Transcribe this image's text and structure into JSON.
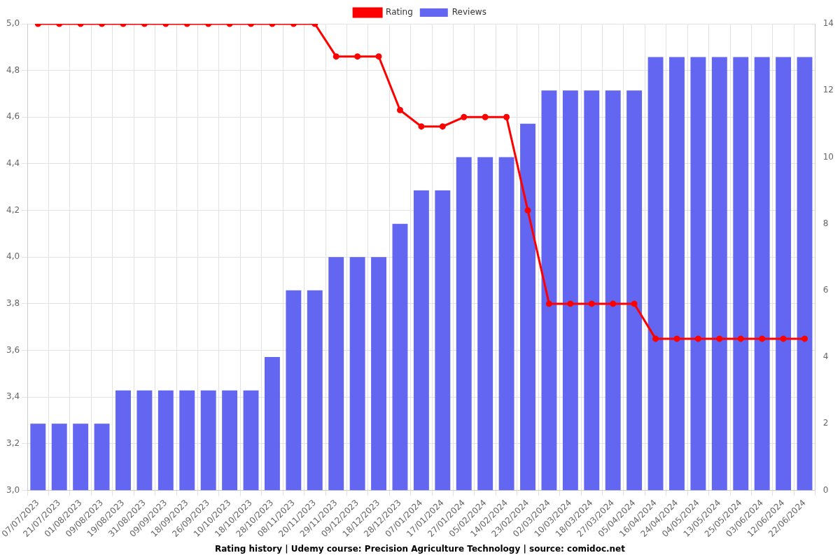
{
  "chart_data": {
    "type": "bar",
    "title": "Rating history | Udemy course: Precision Agriculture Technology | source: comidoc.net",
    "categories": [
      "07/07/2023",
      "21/07/2023",
      "01/08/2023",
      "09/08/2023",
      "19/08/2023",
      "31/08/2023",
      "09/09/2023",
      "18/09/2023",
      "26/09/2023",
      "10/10/2023",
      "18/10/2023",
      "28/10/2023",
      "08/11/2023",
      "20/11/2023",
      "29/11/2023",
      "09/12/2023",
      "18/12/2023",
      "28/12/2023",
      "07/01/2024",
      "17/01/2024",
      "27/01/2024",
      "05/02/2024",
      "14/02/2024",
      "23/02/2024",
      "02/03/2024",
      "10/03/2024",
      "18/03/2024",
      "27/03/2024",
      "05/04/2024",
      "16/04/2024",
      "24/04/2024",
      "04/05/2024",
      "13/05/2024",
      "25/05/2024",
      "03/06/2024",
      "12/06/2024",
      "22/06/2024"
    ],
    "series": [
      {
        "name": "Rating",
        "type": "line",
        "color": "#ff0000",
        "marker": "circle",
        "values": [
          5.0,
          5.0,
          5.0,
          5.0,
          5.0,
          5.0,
          5.0,
          5.0,
          5.0,
          5.0,
          5.0,
          5.0,
          5.0,
          5.0,
          4.86,
          4.86,
          4.86,
          4.63,
          4.56,
          4.56,
          4.6,
          4.6,
          4.6,
          4.2,
          3.8,
          3.8,
          3.8,
          3.8,
          3.8,
          3.65,
          3.65,
          3.65,
          3.65,
          3.65,
          3.65,
          3.65,
          3.65
        ]
      },
      {
        "name": "Reviews",
        "type": "bar",
        "color": "#6366f1",
        "axis": "y2",
        "values": [
          2,
          2,
          2,
          2,
          3,
          3,
          3,
          3,
          3,
          3,
          3,
          4,
          6,
          6,
          7,
          7,
          7,
          8,
          9,
          9,
          10,
          10,
          10,
          11,
          12,
          12,
          12,
          12,
          12,
          13,
          13,
          13,
          13,
          13,
          13,
          13,
          13
        ]
      }
    ],
    "ylim": [
      3.0,
      5.0
    ],
    "yticks": [
      {
        "value": 3.0,
        "label": "3,0"
      },
      {
        "value": 3.2,
        "label": "3,2"
      },
      {
        "value": 3.4,
        "label": "3,4"
      },
      {
        "value": 3.6,
        "label": "3,6"
      },
      {
        "value": 3.8,
        "label": "3,8"
      },
      {
        "value": 4.0,
        "label": "4,0"
      },
      {
        "value": 4.2,
        "label": "4,2"
      },
      {
        "value": 4.4,
        "label": "4,4"
      },
      {
        "value": 4.6,
        "label": "4,6"
      },
      {
        "value": 4.8,
        "label": "4,8"
      },
      {
        "value": 5.0,
        "label": "5,0"
      }
    ],
    "y2lim": [
      0,
      14
    ],
    "y2ticks": [
      0,
      2,
      4,
      6,
      8,
      10,
      12,
      14
    ],
    "grid": true,
    "legend": "top"
  }
}
